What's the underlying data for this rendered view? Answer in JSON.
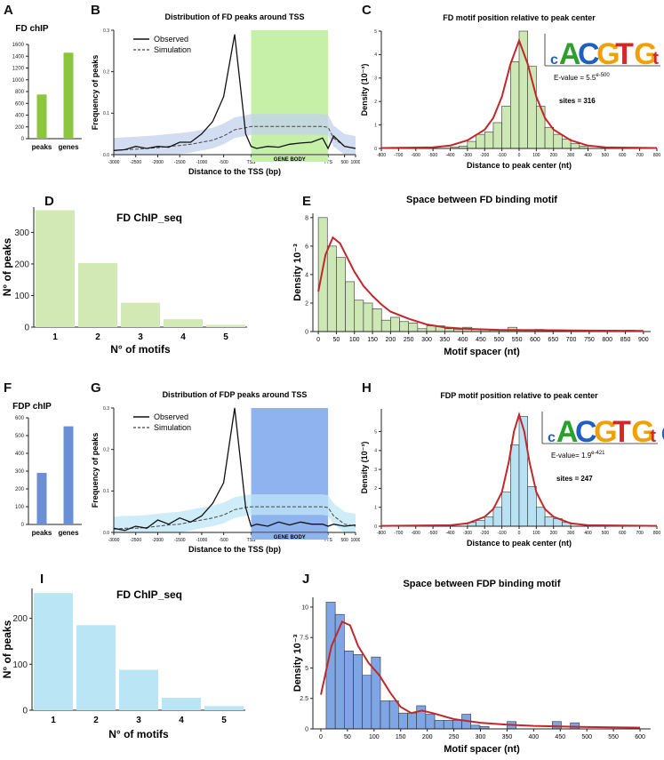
{
  "panels": [
    {
      "letter": "A",
      "type": "bar",
      "title": "FD chIP",
      "color": "#8cc63f",
      "categories": [
        "peaks",
        "genes"
      ],
      "values": [
        750,
        1460
      ],
      "ylim": [
        0,
        1600
      ],
      "yticks": [
        0,
        200,
        400,
        600,
        800,
        1000,
        1200,
        1400,
        1600
      ]
    },
    {
      "letter": "B",
      "type": "line",
      "title": "Distribution of FD peaks around TSS",
      "xlabel": "Distance to the TSS (bp)",
      "ylabel": "Frequency of peaks",
      "ylim": [
        0,
        0.3
      ],
      "yticks": [
        0.0,
        0.1,
        0.2,
        0.3
      ],
      "xtick_labels": [
        "-3000",
        "-2500",
        "-2000",
        "-1500",
        "-1000",
        "-500",
        "TSS",
        "TTS",
        "500",
        "1000"
      ],
      "gene_body_label": "GENE BODY",
      "legend": {
        "observed": "Observed",
        "simulation": "Simulation"
      },
      "box_color": "#c6f0a8",
      "band_color": "#c3d2ee",
      "x": [
        0,
        1,
        2,
        3,
        4,
        5,
        6,
        7,
        8,
        9,
        10,
        11,
        12,
        12.5,
        13,
        14,
        15,
        16,
        17,
        18,
        19,
        19.5,
        20,
        21,
        22
      ],
      "observed": [
        0.01,
        0.012,
        0.02,
        0.015,
        0.02,
        0.018,
        0.03,
        0.03,
        0.05,
        0.08,
        0.14,
        0.29,
        0.05,
        0.02,
        0.015,
        0.02,
        0.018,
        0.025,
        0.028,
        0.03,
        0.04,
        0.015,
        0.045,
        0.02,
        0.015
      ],
      "simulation": [
        0.01,
        0.012,
        0.013,
        0.015,
        0.017,
        0.02,
        0.022,
        0.025,
        0.03,
        0.035,
        0.045,
        0.06,
        0.065,
        0.068,
        0.068,
        0.068,
        0.068,
        0.068,
        0.068,
        0.068,
        0.068,
        0.066,
        0.04,
        0.02,
        0.015
      ]
    },
    {
      "letter": "C",
      "type": "histogram",
      "title": "FD motif position relative to peak center",
      "xlabel": "Distance to peak center (nt)",
      "ylabel": "Density (10⁻³)",
      "ylim": [
        0,
        5
      ],
      "yticks": [
        0,
        1,
        2,
        3,
        4,
        5
      ],
      "xlim": [
        -800,
        800
      ],
      "xtick_values": [
        -800,
        -700,
        -600,
        -500,
        -400,
        -300,
        -200,
        -100,
        0,
        100,
        200,
        300,
        400,
        500,
        600,
        700,
        800
      ],
      "bar_color": "#cde8b4",
      "bin_width": 50,
      "bins_start": [
        -400,
        -350,
        -300,
        -250,
        -200,
        -150,
        -100,
        -50,
        0,
        50,
        100,
        150,
        200,
        250,
        300,
        350
      ],
      "heights": [
        0.05,
        0.1,
        0.3,
        0.6,
        0.7,
        1.1,
        1.8,
        3.7,
        5.0,
        3.5,
        1.8,
        0.9,
        0.6,
        0.4,
        0.2,
        0.1
      ],
      "curve_x": [
        -800,
        -500,
        -400,
        -300,
        -200,
        -150,
        -100,
        -50,
        0,
        50,
        100,
        150,
        200,
        300,
        400,
        500,
        800
      ],
      "curve_y": [
        0.02,
        0.05,
        0.12,
        0.35,
        0.8,
        1.3,
        2.2,
        3.6,
        4.6,
        3.6,
        2.2,
        1.3,
        0.8,
        0.35,
        0.12,
        0.05,
        0.02
      ],
      "curve_color": "#c0282b",
      "logo_text": "cACGTGtC",
      "evalue_label": "E-value = 5.5",
      "evalue_exp": "e-500",
      "sites_label": "sites = 316"
    },
    {
      "letter": "D",
      "type": "bar",
      "title": "FD ChIP_seq",
      "xlabel": "N° of motifs",
      "ylabel": "N° of peaks",
      "color": "#d3e9b5",
      "categories": [
        "1",
        "2",
        "3",
        "4",
        "5"
      ],
      "values": [
        370,
        203,
        77,
        25,
        7
      ],
      "ylim": [
        0,
        380
      ],
      "yticks": [
        0,
        100,
        200,
        300
      ]
    },
    {
      "letter": "E",
      "type": "histogram",
      "title": "Space between FD binding motif",
      "xlabel": "Motif spacer (nt)",
      "ylabel": "Density 10⁻³",
      "ylim": [
        0,
        8.3
      ],
      "yticks": [
        0,
        2,
        4,
        6,
        8
      ],
      "xlim": [
        -15,
        920
      ],
      "xtick_values": [
        0,
        50,
        100,
        150,
        200,
        250,
        300,
        350,
        400,
        450,
        500,
        550,
        600,
        650,
        700,
        750,
        800,
        850,
        900
      ],
      "bar_color": "#cde8b4",
      "bin_width": 25,
      "bins_start": [
        0,
        25,
        50,
        75,
        100,
        125,
        150,
        175,
        200,
        225,
        250,
        275,
        300,
        325,
        350,
        375,
        400,
        425,
        450,
        475,
        500,
        525,
        550,
        575,
        600,
        625,
        650,
        675,
        700,
        725,
        750,
        775,
        800,
        825,
        850
      ],
      "heights": [
        8.0,
        6.0,
        5.2,
        3.5,
        2.2,
        2.0,
        1.6,
        0.8,
        1.0,
        0.7,
        0.6,
        0.2,
        0.4,
        0.4,
        0.2,
        0.15,
        0.3,
        0.2,
        0.15,
        0.1,
        0.1,
        0.3,
        0.1,
        0.1,
        0.15,
        0.1,
        0.1,
        0.1,
        0.05,
        0.1,
        0.1,
        0.05,
        0.1,
        0.05,
        0.1
      ],
      "curve_x": [
        0,
        20,
        40,
        60,
        80,
        100,
        125,
        150,
        175,
        200,
        250,
        300,
        350,
        400,
        500,
        600,
        700,
        800,
        900
      ],
      "curve_y": [
        2.8,
        5.4,
        6.6,
        6.2,
        5.2,
        4.2,
        3.2,
        2.5,
        1.9,
        1.4,
        0.9,
        0.5,
        0.3,
        0.2,
        0.12,
        0.1,
        0.08,
        0.06,
        0.05
      ],
      "curve_color": "#c0282b"
    },
    {
      "letter": "F",
      "type": "bar",
      "title": "FDP chIP",
      "color": "#6b8fd4",
      "categories": [
        "peaks",
        "genes"
      ],
      "values": [
        290,
        552
      ],
      "ylim": [
        0,
        600
      ],
      "yticks": [
        0,
        100,
        200,
        300,
        400,
        500,
        600
      ]
    },
    {
      "letter": "G",
      "type": "line",
      "title": "Distribution of FDP peaks around TSS",
      "xlabel": "Distance to the TSS (bp)",
      "ylabel": "Frequency of peaks",
      "ylim": [
        0,
        0.3
      ],
      "yticks": [
        0.0,
        0.1,
        0.2,
        0.3
      ],
      "xtick_labels": [
        "-3000",
        "-2500",
        "-2000",
        "-1500",
        "-1000",
        "-500",
        "TSS",
        "TTS",
        "500",
        "1000"
      ],
      "gene_body_label": "GENE BODY",
      "legend": {
        "observed": "Observed",
        "simulation": "Simulation"
      },
      "box_color": "#8fb3ee",
      "band_color": "#bfe6f7",
      "x": [
        0,
        1,
        2,
        3,
        4,
        5,
        6,
        7,
        8,
        9,
        10,
        11,
        12,
        12.5,
        13,
        14,
        15,
        16,
        17,
        18,
        19,
        19.5,
        20,
        21,
        22
      ],
      "observed": [
        0.01,
        0.005,
        0.015,
        0.01,
        0.03,
        0.02,
        0.035,
        0.025,
        0.04,
        0.07,
        0.12,
        0.3,
        0.06,
        0.015,
        0.02,
        0.015,
        0.025,
        0.018,
        0.025,
        0.02,
        0.02,
        0.015,
        0.02,
        0.015,
        0.018
      ],
      "simulation": [
        0.008,
        0.01,
        0.01,
        0.012,
        0.015,
        0.018,
        0.02,
        0.025,
        0.03,
        0.035,
        0.042,
        0.055,
        0.06,
        0.062,
        0.062,
        0.062,
        0.062,
        0.062,
        0.062,
        0.062,
        0.062,
        0.06,
        0.04,
        0.02,
        0.015
      ]
    },
    {
      "letter": "H",
      "type": "histogram",
      "title": "FDP motif position relative to peak center",
      "xlabel": "Distance to peak center (nt)",
      "ylabel": "Density (10⁻³)",
      "ylim": [
        0,
        6.2
      ],
      "yticks": [
        0,
        1,
        2,
        3,
        4,
        5
      ],
      "xlim": [
        -800,
        800
      ],
      "xtick_values": [
        -800,
        -700,
        -600,
        -500,
        -400,
        -300,
        -200,
        -100,
        0,
        100,
        200,
        300,
        400,
        500,
        600,
        700,
        800
      ],
      "bar_color": "#b8e2f4",
      "bin_width": 50,
      "bins_start": [
        -300,
        -250,
        -200,
        -150,
        -100,
        -50,
        0,
        50,
        100,
        150,
        200,
        250
      ],
      "heights": [
        0.2,
        0.3,
        0.5,
        1.0,
        1.8,
        4.3,
        5.8,
        2.1,
        1.0,
        0.5,
        0.4,
        0.2
      ],
      "curve_x": [
        -800,
        -400,
        -300,
        -200,
        -150,
        -100,
        -60,
        -30,
        0,
        30,
        60,
        100,
        150,
        200,
        300,
        400,
        800
      ],
      "curve_y": [
        0.02,
        0.05,
        0.15,
        0.5,
        0.9,
        1.8,
        3.4,
        5.0,
        5.9,
        5.0,
        3.4,
        1.8,
        0.9,
        0.5,
        0.15,
        0.05,
        0.02
      ],
      "curve_color": "#c0282b",
      "logo_text": "cACGTGtC",
      "evalue_label": "E-value= 1.9",
      "evalue_exp": "e-421",
      "sites_label": "sites = 247"
    },
    {
      "letter": "I",
      "type": "bar",
      "title": "FD ChIP_seq",
      "xlabel": "N° of motifs",
      "ylabel": "N° of peaks",
      "color": "#b9e5f5",
      "categories": [
        "1",
        "2",
        "3",
        "4",
        "5"
      ],
      "values": [
        255,
        185,
        88,
        27,
        9
      ],
      "ylim": [
        0,
        265
      ],
      "yticks": [
        0,
        100,
        200
      ]
    },
    {
      "letter": "J",
      "type": "histogram",
      "title": "Space between FDP binding motif",
      "xlabel": "Motif spacer (nt)",
      "ylabel": "Density 10⁻³",
      "ylim": [
        0,
        10.8
      ],
      "yticks": [
        0,
        2.5,
        5.0,
        7.5,
        10.0
      ],
      "xlim": [
        -15,
        620
      ],
      "xtick_values": [
        0,
        50,
        100,
        150,
        200,
        250,
        300,
        350,
        400,
        450,
        500,
        550,
        600
      ],
      "bar_color": "#7ea5e4",
      "bin_width": 17,
      "bins_start": [
        10,
        27,
        44,
        61,
        78,
        95,
        112,
        129,
        146,
        163,
        180,
        197,
        214,
        231,
        248,
        265,
        282,
        299,
        350,
        435,
        469
      ],
      "heights": [
        10.4,
        9.4,
        6.4,
        6.1,
        4.4,
        5.9,
        2.3,
        2.3,
        1.3,
        1.3,
        1.9,
        1.2,
        0.7,
        0.7,
        0.7,
        1.2,
        0.3,
        0.2,
        0.6,
        0.6,
        0.5
      ],
      "curve_x": [
        0,
        20,
        40,
        55,
        70,
        90,
        110,
        130,
        150,
        170,
        190,
        210,
        250,
        300,
        350,
        400,
        500,
        600
      ],
      "curve_y": [
        2.8,
        6.8,
        8.8,
        8.5,
        6.8,
        5.4,
        4.4,
        3.0,
        1.8,
        1.3,
        1.5,
        1.3,
        0.8,
        0.5,
        0.35,
        0.25,
        0.15,
        0.1
      ],
      "curve_color": "#c0282b"
    }
  ]
}
